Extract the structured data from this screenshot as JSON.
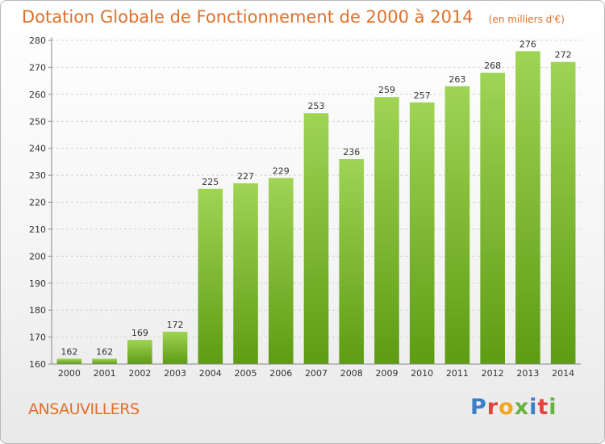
{
  "header": {
    "title": "Dotation Globale de Fonctionnement de 2000 à 2014",
    "subtitle": "(en milliers d'€)"
  },
  "footer": {
    "location": "ANSAUVILLERS",
    "logo_text": "Proxiti",
    "logo_colors": [
      "#3a7fc8",
      "#e8403a",
      "#f2a81d",
      "#67b33b",
      "#3a7fc8",
      "#e8403a",
      "#67b33b"
    ]
  },
  "chart_data": {
    "type": "bar",
    "categories": [
      "2000",
      "2001",
      "2002",
      "2003",
      "2004",
      "2005",
      "2006",
      "2007",
      "2008",
      "2009",
      "2010",
      "2011",
      "2012",
      "2013",
      "2014"
    ],
    "values": [
      162,
      162,
      169,
      172,
      225,
      227,
      229,
      253,
      236,
      259,
      257,
      263,
      268,
      276,
      272
    ],
    "title": "Dotation Globale de Fonctionnement de 2000 à 2014",
    "subtitle": "(en milliers d'€)",
    "xlabel": "",
    "ylabel": "",
    "ylim": [
      160,
      280
    ],
    "yticks": [
      160,
      170,
      180,
      190,
      200,
      210,
      220,
      230,
      240,
      250,
      260,
      270,
      280
    ],
    "grid": true,
    "bar_color_top": "#9fd455",
    "bar_color_bottom": "#5e9c14"
  }
}
